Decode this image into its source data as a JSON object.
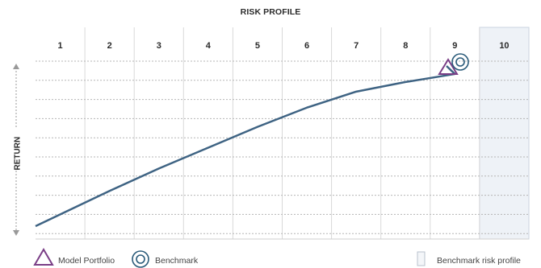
{
  "chart_data": {
    "type": "line",
    "title": "RISK PROFILE",
    "ylabel": "RETURN",
    "categories": [
      "1",
      "2",
      "3",
      "4",
      "5",
      "6",
      "7",
      "8",
      "9",
      "10"
    ],
    "series": [
      {
        "values": [
          0.0,
          0.22,
          0.36,
          0.49,
          0.62,
          0.74,
          0.84,
          0.9,
          0.95,
          1.0
        ]
      }
    ],
    "markers": {
      "model_portfolio": {
        "label": "Model Portfolio",
        "risk_profile": "10",
        "color": "#7a3e86"
      },
      "benchmark": {
        "label": "Benchmark",
        "risk_profile": "10",
        "color": "#2a5b7a"
      }
    },
    "highlight": {
      "label": "Benchmark risk profile",
      "category": "10"
    },
    "line_color": "#3e6383",
    "grid": true
  }
}
